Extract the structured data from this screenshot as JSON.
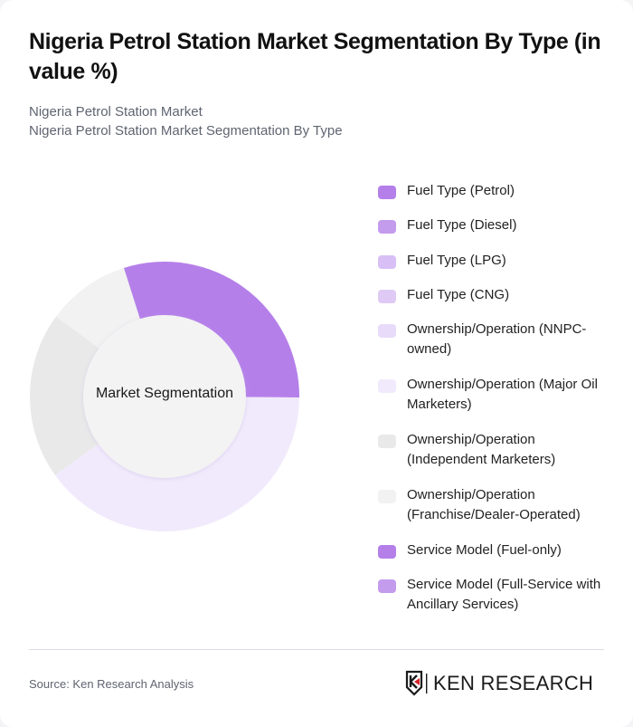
{
  "header": {
    "title": "Nigeria Petrol Station Market Segmentation By Type (in value %)",
    "breadcrumb": [
      "Nigeria Petrol Station Market",
      "Nigeria Petrol Station Market Segmentation By Type"
    ]
  },
  "chart": {
    "center_label": "Market Segmentation"
  },
  "legend": [
    {
      "label": "Fuel Type (Petrol)",
      "color": "#b57fea"
    },
    {
      "label": "Fuel Type (Diesel)",
      "color": "#c39ced"
    },
    {
      "label": "Fuel Type (LPG)",
      "color": "#d8bff5"
    },
    {
      "label": "Fuel Type (CNG)",
      "color": "#dfcaf5"
    },
    {
      "label": "Ownership/Operation (NNPC-owned)",
      "color": "#e8dbf9"
    },
    {
      "label": "Ownership/Operation (Major Oil Marketers)",
      "color": "#f1eafc"
    },
    {
      "label": "Ownership/Operation (Independent Marketers)",
      "color": "#e9e9e9"
    },
    {
      "label": "Ownership/Operation (Franchise/Dealer-Operated)",
      "color": "#f2f2f2"
    },
    {
      "label": "Service Model (Fuel-only)",
      "color": "#b57fea"
    },
    {
      "label": "Service Model (Full-Service with Ancillary Services)",
      "color": "#c39ced"
    }
  ],
  "footer": {
    "source": "Source: Ken Research Analysis",
    "logo_text": "KEN RESEARCH"
  },
  "chart_data": {
    "type": "pie",
    "subtype": "donut",
    "title": "Nigeria Petrol Station Market Segmentation By Type (in value %)",
    "center_label": "Market Segmentation",
    "categories": [
      "Fuel Type (Petrol)",
      "Ownership/Operation (Major Oil Marketers)",
      "Ownership/Operation (Independent Marketers)",
      "Ownership/Operation (Franchise/Dealer-Operated)"
    ],
    "values": [
      30,
      40,
      20,
      10
    ],
    "colors": [
      "#b57fea",
      "#f1eafc",
      "#e9e9e9",
      "#f2f2f2"
    ],
    "start_angle_deg": -17.6,
    "legend_entries": [
      "Fuel Type (Petrol)",
      "Fuel Type (Diesel)",
      "Fuel Type (LPG)",
      "Fuel Type (CNG)",
      "Ownership/Operation (NNPC-owned)",
      "Ownership/Operation (Major Oil Marketers)",
      "Ownership/Operation (Independent Marketers)",
      "Ownership/Operation (Franchise/Dealer-Operated)",
      "Service Model (Fuel-only)",
      "Service Model (Full-Service with Ancillary Services)"
    ],
    "legend_position": "right",
    "source": "Source: Ken Research Analysis"
  }
}
